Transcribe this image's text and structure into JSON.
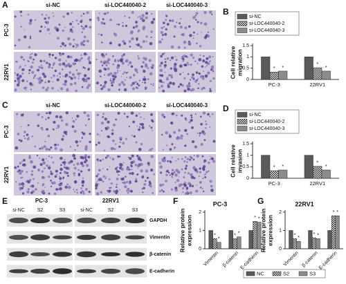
{
  "image_panels": [
    {
      "label": "A",
      "columns": [
        "si-NC",
        "si-LOC440040-2",
        "si-LOC440040-3"
      ],
      "rows": [
        "PC-3",
        "22RV1"
      ]
    },
    {
      "label": "C",
      "columns": [
        "si-NC",
        "si-LOC440040-2",
        "si-LOC440040-3"
      ],
      "rows": [
        "PC-3",
        "22RV1"
      ]
    }
  ],
  "blot_panel": {
    "label": "E",
    "groups": [
      "PC-3",
      "22RV1"
    ],
    "lanes": [
      "si-NC",
      "S2",
      "S3",
      "si-NC",
      "S2",
      "S3"
    ],
    "proteins": [
      "GAPDH",
      "Vimentin",
      "β-catenin",
      "E-cadherin"
    ]
  },
  "chart_data": [
    {
      "type": "bar",
      "label": "B",
      "ylabel": [
        "Cell relative",
        "migration"
      ],
      "categories": [
        "PC-3",
        "22RV1"
      ],
      "series": [
        {
          "name": "si-NC",
          "color": "#5a5a5a",
          "values": [
            1,
            1
          ]
        },
        {
          "name": "si-LOC440040-2",
          "color": "#9a9a9a",
          "hatch": true,
          "star": "*",
          "values": [
            0.33,
            0.52
          ]
        },
        {
          "name": "si-LOC440040-3",
          "color": "#8c8c8c",
          "star": "*",
          "values": [
            0.37,
            0.37
          ]
        }
      ],
      "ylim": [
        0,
        1.5
      ],
      "yticks": [
        0,
        0.5,
        1,
        1.5
      ],
      "legend": "top"
    },
    {
      "type": "bar",
      "label": "D",
      "ylabel": [
        "Cell relative",
        "invasion"
      ],
      "categories": [
        "PC-3",
        "22RV1"
      ],
      "series": [
        {
          "name": "si-NC",
          "color": "#5a5a5a",
          "values": [
            1,
            1
          ]
        },
        {
          "name": "si-LOC440040-2",
          "color": "#9a9a9a",
          "hatch": true,
          "star": "*",
          "values": [
            0.33,
            0.52
          ]
        },
        {
          "name": "si-LOC440040-3",
          "color": "#8c8c8c",
          "star": "*",
          "values": [
            0.36,
            0.36
          ]
        }
      ],
      "ylim": [
        0,
        1.5
      ],
      "yticks": [
        0,
        0.5,
        1,
        1.5
      ],
      "legend": "top"
    },
    {
      "type": "bar",
      "label": "F",
      "title": "PC-3",
      "ylabel": [
        "Relative protein",
        "expression"
      ],
      "categories": [
        "Vimentin",
        "β-catenin",
        "E-cadherin"
      ],
      "series": [
        {
          "name": "NC",
          "color": "#5a5a5a",
          "values": [
            1,
            1,
            1
          ]
        },
        {
          "name": "S2",
          "color": "#9a9a9a",
          "hatch": true,
          "star": "*",
          "values": [
            0.55,
            0.55,
            1.5
          ]
        },
        {
          "name": "S3",
          "color": "#8c8c8c",
          "star": "*",
          "values": [
            0.35,
            0.65,
            1.45
          ]
        }
      ],
      "ylim": [
        0,
        2
      ],
      "yticks": [
        0,
        1,
        2
      ],
      "legend": "bottom"
    },
    {
      "type": "bar",
      "label": "G",
      "title": "22RV1",
      "ylabel": [
        "Relative protein",
        "expression"
      ],
      "categories": [
        "Vimentin",
        "β-catenin",
        "E-cadherin"
      ],
      "series": [
        {
          "color": "#5a5a5a",
          "values": [
            1,
            1,
            1
          ]
        },
        {
          "color": "#9a9a9a",
          "hatch": true,
          "star": "*",
          "values": [
            0.55,
            0.6,
            1.8
          ]
        },
        {
          "color": "#8c8c8c",
          "star": "*",
          "values": [
            0.4,
            0.55,
            1.8
          ]
        }
      ],
      "ylim": [
        0,
        2
      ],
      "yticks": [
        0,
        1,
        2
      ]
    }
  ]
}
